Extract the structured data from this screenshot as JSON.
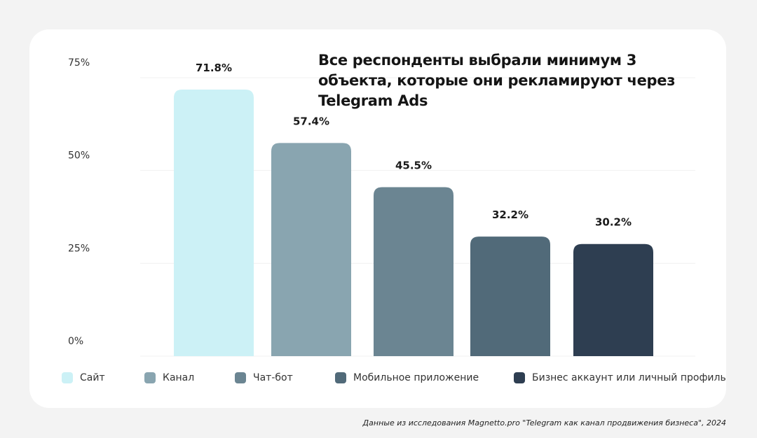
{
  "chart_data": {
    "type": "bar",
    "title": "Все респонденты выбрали минимум 3 объекта, которые они рекламируют через Telegram Ads",
    "categories": [
      "Сайт",
      "Канал",
      "Чат-бот",
      "Мобильное приложение",
      "Бизнес аккаунт или личный профиль"
    ],
    "values": [
      71.8,
      57.4,
      45.5,
      32.2,
      30.2
    ],
    "data_labels": [
      "71.8%",
      "57.4%",
      "45.5%",
      "32.2%",
      "30.2%"
    ],
    "colors": [
      "#CCF1F6",
      "#89A5B0",
      "#6B8592",
      "#516A79",
      "#2E3E51"
    ],
    "yticks": [
      0,
      25,
      50,
      75
    ],
    "ytick_labels": [
      "0%",
      "25%",
      "50%",
      "75%"
    ],
    "ylim": [
      0,
      75
    ],
    "grid": true,
    "legend_position": "bottom"
  },
  "footer": "Данные из исследования Magnetto.pro \"Telegram как канал продвижения бизнеса\", 2024"
}
